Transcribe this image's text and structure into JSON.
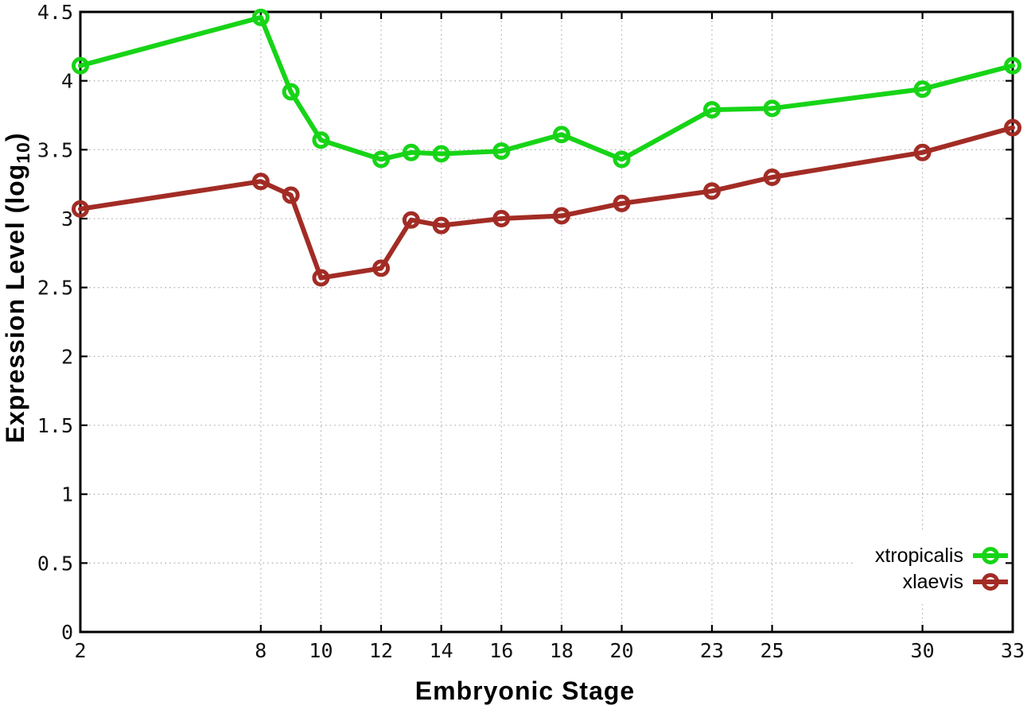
{
  "chart_data": {
    "type": "line",
    "title": "",
    "xlabel": "Embryonic Stage",
    "ylabel": {
      "prefix": "Expression Level (log",
      "subscript": "10",
      "suffix": ")"
    },
    "x": [
      2,
      8,
      9,
      10,
      12,
      13,
      14,
      16,
      18,
      20,
      23,
      25,
      30,
      33
    ],
    "series": [
      {
        "name": "xtropicalis",
        "color": "#17d417",
        "values": [
          4.11,
          4.46,
          3.92,
          3.57,
          3.43,
          3.48,
          3.47,
          3.49,
          3.61,
          3.43,
          3.79,
          3.8,
          3.94,
          4.11
        ]
      },
      {
        "name": "xlaevis",
        "color": "#a22c25",
        "values": [
          3.07,
          3.27,
          3.17,
          2.57,
          2.64,
          2.99,
          2.95,
          3.0,
          3.02,
          3.11,
          3.2,
          3.3,
          3.48,
          3.66
        ]
      }
    ],
    "x_ticks": {
      "values": [
        2,
        8,
        10,
        12,
        14,
        16,
        18,
        20,
        23,
        25,
        30,
        33
      ],
      "labels": [
        "2",
        "8",
        "10",
        "12",
        "14",
        "16",
        "18",
        "20",
        "23",
        "25",
        "30",
        "33"
      ]
    },
    "y_ticks": {
      "values": [
        0,
        0.5,
        1,
        1.5,
        2,
        2.5,
        3,
        3.5,
        4,
        4.5
      ],
      "labels": [
        "0",
        "0.5",
        "1",
        "1.5",
        "2",
        "2.5",
        "3",
        "3.5",
        "4",
        "4.5"
      ]
    },
    "xlim": [
      2,
      33
    ],
    "ylim": [
      0,
      4.5
    ],
    "grid": true,
    "marker": "open-circle",
    "legend": {
      "position": "inside-bottom-right",
      "entries": [
        "xtropicalis",
        "xlaevis"
      ]
    }
  }
}
